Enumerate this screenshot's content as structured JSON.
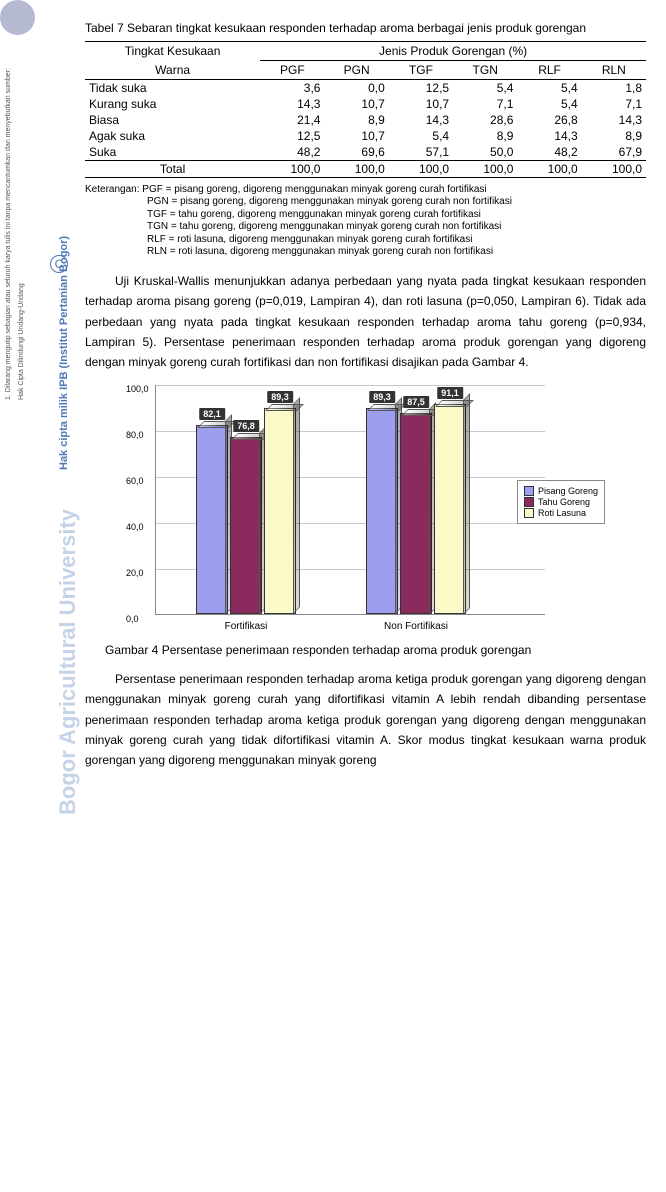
{
  "watermarks": {
    "hak_cipta_undang": "Hak Cipta Dilindungi Undang-Undang",
    "dilarang": "1. Dilarang mengutip sebagian atau seluruh karya tulis ini tanpa mencantumkan dan menyebutkan sumber:",
    "ipb_mark": "Hak cipta milik IPB (Institut Pertanian Bogor)",
    "bogor_univ": "Bogor Agricultural University",
    "c_symbol": "C"
  },
  "table": {
    "title": "Tabel 7  Sebaran tingkat kesukaan responden terhadap aroma berbagai jenis produk gorengan",
    "col_header_left_top": "Tingkat Kesukaan",
    "col_header_left_bottom": "Warna",
    "header_group": "Jenis Produk Gorengan (%)",
    "columns": [
      "PGF",
      "PGN",
      "TGF",
      "TGN",
      "RLF",
      "RLN"
    ],
    "rows": [
      {
        "label": "Tidak suka",
        "vals": [
          "3,6",
          "0,0",
          "12,5",
          "5,4",
          "5,4",
          "1,8"
        ]
      },
      {
        "label": "Kurang suka",
        "vals": [
          "14,3",
          "10,7",
          "10,7",
          "7,1",
          "5,4",
          "7,1"
        ]
      },
      {
        "label": "Biasa",
        "vals": [
          "21,4",
          "8,9",
          "14,3",
          "28,6",
          "26,8",
          "14,3"
        ]
      },
      {
        "label": "Agak suka",
        "vals": [
          "12,5",
          "10,7",
          "5,4",
          "8,9",
          "14,3",
          "8,9"
        ]
      },
      {
        "label": "Suka",
        "vals": [
          "48,2",
          "69,6",
          "57,1",
          "50,0",
          "48,2",
          "67,9"
        ]
      }
    ],
    "total_label": "Total",
    "total_vals": [
      "100,0",
      "100,0",
      "100,0",
      "100,0",
      "100,0",
      "100,0"
    ]
  },
  "keterangan": {
    "prefix": "Keterangan:",
    "lines": [
      "PGF = pisang goreng, digoreng menggunakan minyak goreng curah fortifikasi",
      "PGN = pisang goreng, digoreng menggunakan minyak goreng curah non fortifikasi",
      "TGF = tahu goreng, digoreng menggunakan minyak goreng curah fortifikasi",
      "TGN = tahu goreng, digoreng menggunakan minyak goreng curah non fortifikasi",
      "RLF = roti lasuna, digoreng menggunakan minyak goreng curah fortifikasi",
      "RLN = roti lasuna, digoreng menggunakan minyak goreng curah non fortifikasi"
    ]
  },
  "para1": "Uji Kruskal-Wallis menunjukkan adanya perbedaan yang nyata pada tingkat kesukaan responden terhadap aroma pisang goreng (p=0,019, Lampiran 4), dan roti lasuna (p=0,050, Lampiran 6). Tidak ada perbedaan yang nyata pada tingkat kesukaan responden terhadap aroma tahu goreng (p=0,934, Lampiran 5). Persentase penerimaan responden terhadap aroma produk gorengan yang digoreng dengan minyak goreng curah fortifikasi dan non fortifikasi disajikan pada Gambar 4.",
  "chart": {
    "type": "bar",
    "ylim": [
      0,
      100
    ],
    "yticks": [
      "0,0",
      "20,0",
      "40,0",
      "60,0",
      "80,0",
      "100,0"
    ],
    "categories": [
      "Fortifikasi",
      "Non Fortifikasi"
    ],
    "series": [
      {
        "name": "Pisang Goreng",
        "color": "#9e9ef0",
        "values": [
          82.1,
          89.3
        ],
        "labels": [
          "82,1",
          "89,3"
        ]
      },
      {
        "name": "Tahu Goreng",
        "color": "#8b2a5c",
        "values": [
          76.8,
          87.5
        ],
        "labels": [
          "76,8",
          "87,5"
        ]
      },
      {
        "name": "Roti Lasuna",
        "color": "#fbf9c8",
        "values": [
          89.3,
          91.1
        ],
        "labels": [
          "89,3",
          "91,1"
        ]
      }
    ],
    "background_color": "#ffffff",
    "grid_color": "#c8c8c8",
    "axis_color": "#888888",
    "bar_border_color": "#333333"
  },
  "fig_caption": "Gambar 4  Persentase penerimaan responden terhadap aroma produk gorengan",
  "para2": "Persentase penerimaan responden terhadap aroma ketiga produk gorengan yang digoreng dengan menggunakan minyak goreng curah yang difortifikasi vitamin A lebih rendah dibanding persentase penerimaan responden terhadap aroma ketiga produk gorengan yang digoreng dengan menggunakan minyak goreng curah yang tidak difortifikasi vitamin A. Skor modus tingkat kesukaan warna produk gorengan yang digoreng menggunakan minyak goreng"
}
